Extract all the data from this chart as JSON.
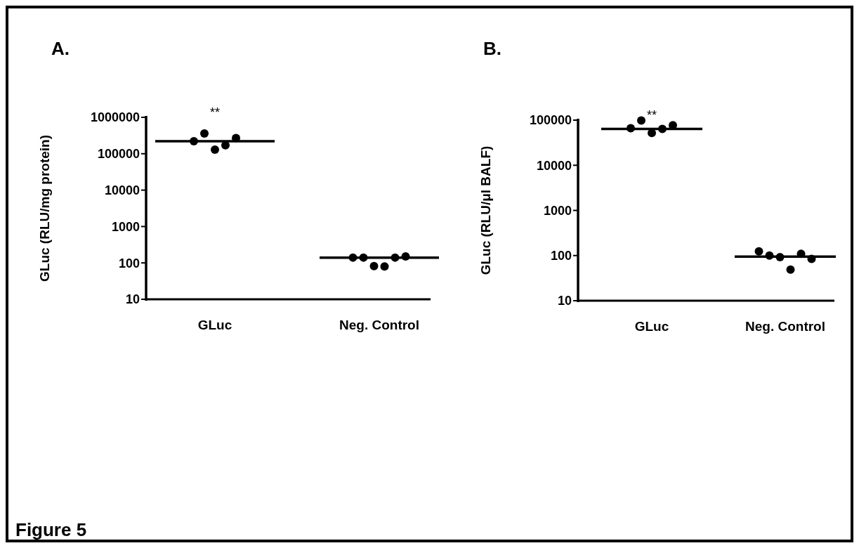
{
  "chart_data": [
    {
      "type": "scatter",
      "title": "A.",
      "ylabel": "GLuc (RLU/mg protein)",
      "categories": [
        "GLuc",
        "Neg. Control"
      ],
      "log": "y",
      "ylim": [
        10,
        1000000
      ],
      "yticks": [
        10,
        100,
        1000,
        10000,
        100000,
        1000000
      ],
      "grid": false,
      "annotations": [
        "**",
        "Figure 5"
      ],
      "series": [
        {
          "color": "#000000",
          "marker": "circle",
          "x": [
            "GLuc",
            "GLuc",
            "GLuc",
            "GLuc",
            "GLuc",
            "Neg. Control",
            "Neg. Control",
            "Neg. Control",
            "Neg. Control",
            "Neg. Control",
            "Neg. Control"
          ],
          "values": [
            220000,
            360000,
            130000,
            170000,
            270000,
            140,
            140,
            82,
            80,
            140,
            150
          ]
        }
      ],
      "ref_lines": [
        {
          "axis": "y",
          "value": 220000,
          "color": "#000000"
        },
        {
          "axis": "y",
          "value": 140,
          "color": "#000000"
        }
      ]
    },
    {
      "type": "scatter",
      "title": "B.",
      "ylabel": "GLuc (RLU/μl BALF)",
      "categories": [
        "GLuc",
        "Neg. Control"
      ],
      "log": "y",
      "ylim": [
        10,
        100000
      ],
      "yticks": [
        10,
        100,
        1000,
        10000,
        100000
      ],
      "grid": false,
      "annotations": [
        "**"
      ],
      "series": [
        {
          "color": "#000000",
          "marker": "circle",
          "x": [
            "GLuc",
            "GLuc",
            "GLuc",
            "GLuc",
            "GLuc",
            "Neg. Control",
            "Neg. Control",
            "Neg. Control",
            "Neg. Control",
            "Neg. Control",
            "Neg. Control"
          ],
          "values": [
            66000,
            98000,
            52000,
            64000,
            77000,
            124,
            100,
            92,
            49,
            109,
            84
          ]
        }
      ],
      "ref_lines": [
        {
          "axis": "y",
          "value": 64000,
          "color": "#000000"
        },
        {
          "axis": "y",
          "value": 95,
          "color": "#000000"
        }
      ]
    }
  ]
}
